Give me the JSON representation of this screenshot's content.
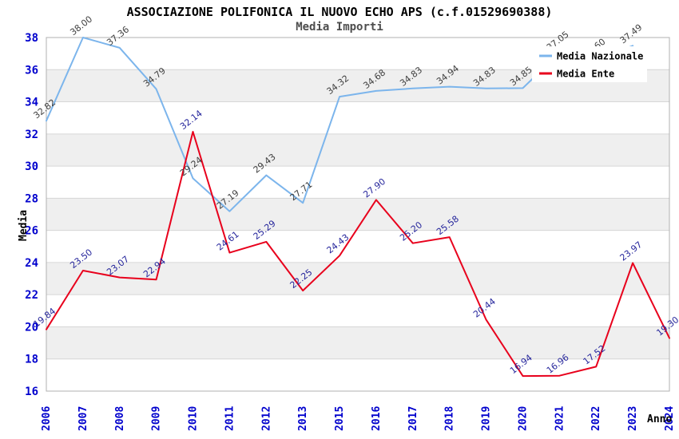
{
  "header": {
    "title": "ASSOCIAZIONE POLIFONICA IL NUOVO ECHO APS (c.f.01529690388)",
    "subtitle": "Media Importi"
  },
  "chart_data": {
    "type": "line",
    "x": [
      "2006",
      "2007",
      "2008",
      "2009",
      "2010",
      "2011",
      "2012",
      "2013",
      "2015",
      "2016",
      "2017",
      "2018",
      "2019",
      "2020",
      "2021",
      "2022",
      "2023",
      "2024"
    ],
    "xlabel": "Anno",
    "ylabel": "Media",
    "ylim": [
      16,
      38
    ],
    "ytick_step": 2,
    "grid": true,
    "legend_position": "top-right",
    "series": [
      {
        "name": "Media Nazionale",
        "color": "#7cb5ec",
        "label_color": "#404040",
        "values": [
          32.82,
          38.0,
          37.36,
          34.79,
          29.24,
          27.19,
          29.43,
          27.71,
          34.32,
          34.68,
          34.83,
          34.94,
          34.83,
          34.85,
          37.05,
          36.6,
          37.49,
          null
        ]
      },
      {
        "name": "Media Ente",
        "color": "#e8001c",
        "label_color": "#26269c",
        "values": [
          19.84,
          23.5,
          23.07,
          22.94,
          32.14,
          24.61,
          25.29,
          22.25,
          24.43,
          27.9,
          25.2,
          25.58,
          20.44,
          16.94,
          16.96,
          17.52,
          23.97,
          19.3
        ]
      }
    ],
    "colors": {
      "tick_label": "#0000cd",
      "band": "#efefef",
      "grid_line": "#d6d6d6",
      "plot_border": "#b0b0b0",
      "legend_background": "#ffffff"
    }
  }
}
